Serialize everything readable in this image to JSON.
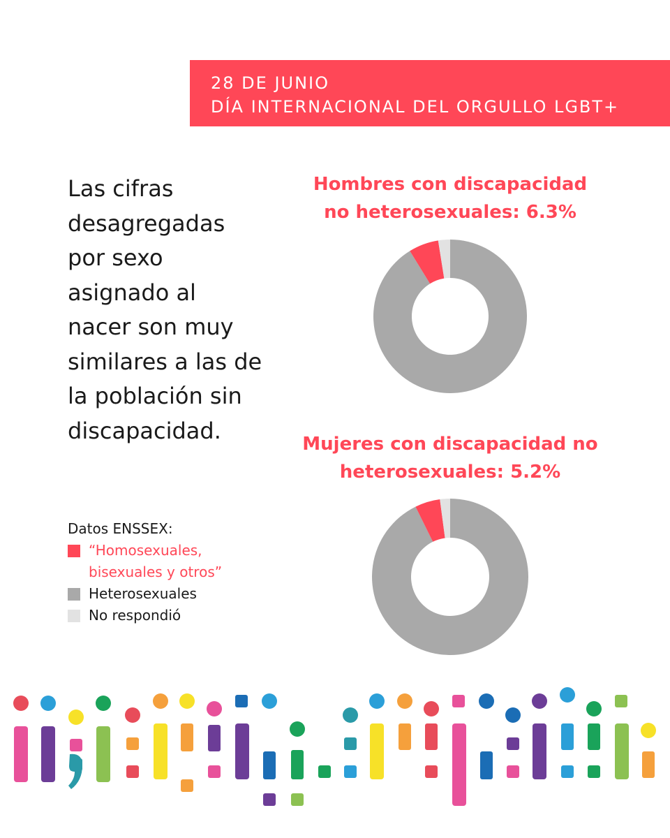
{
  "banner": {
    "line1": "28 DE JUNIO",
    "line2": "DÍA INTERNACIONAL DEL ORGULLO LGBT+"
  },
  "body_text": {
    "lines": [
      "Las cifras",
      "desagregadas",
      "por sexo",
      "asignado al",
      "nacer son muy",
      "similares a las de",
      "la población sin",
      "discapacidad."
    ]
  },
  "colors": {
    "accent": "#ff4757",
    "hetero": "#a9a9a9",
    "no_response": "#e2e2e2"
  },
  "legend": {
    "title": "Datos ENSSEX:",
    "items": [
      {
        "lines": [
          "“Homosexuales,",
          "bisexuales y otros”"
        ],
        "color": "#ff4757",
        "text_color": "#ff4757"
      },
      {
        "lines": [
          "Heterosexuales"
        ],
        "color": "#a9a9a9",
        "text_color": "#1a1a1a"
      },
      {
        "lines": [
          "No respondió"
        ],
        "color": "#e2e2e2",
        "text_color": "#1a1a1a"
      }
    ]
  },
  "chart_data": [
    {
      "type": "pie",
      "title_lines": [
        "Hombres con discapacidad",
        "no heterosexuales: 6.3%"
      ],
      "slices": [
        {
          "label": "Heterosexuales",
          "value": 91.2,
          "color": "#a9a9a9"
        },
        {
          "label": "“Homosexuales, bisexuales y otros”",
          "value": 6.3,
          "color": "#ff4757"
        },
        {
          "label": "No respondió",
          "value": 2.5,
          "color": "#e2e2e2"
        }
      ]
    },
    {
      "type": "pie",
      "title_lines": [
        "Mujeres con discapacidad no",
        "heterosexuales: 5.2%"
      ],
      "slices": [
        {
          "label": "Heterosexuales",
          "value": 92.7,
          "color": "#a9a9a9"
        },
        {
          "label": "“Homosexuales, bisexuales y otros”",
          "value": 5.2,
          "color": "#ff4757"
        },
        {
          "label": "No respondió",
          "value": 2.1,
          "color": "#e2e2e2"
        }
      ]
    }
  ]
}
